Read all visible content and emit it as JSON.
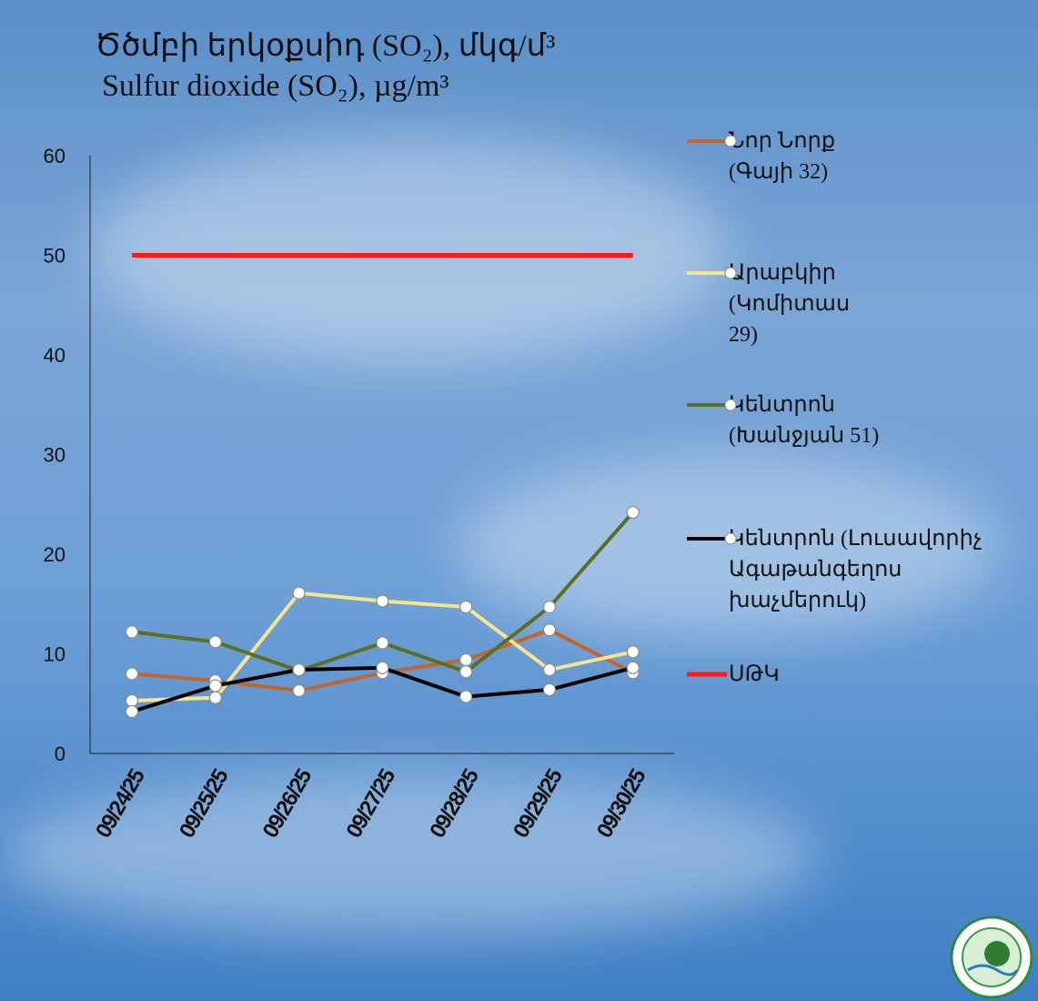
{
  "chart_data": {
    "type": "line",
    "title": "Ծծմբի երկօքսիդ (SO₂), մկգ/մ³",
    "subtitle": "Sulfur dioxide (SO₂), µg/m³",
    "categories": [
      "09/24/25",
      "09/25/25",
      "09/26/25",
      "09/27/25",
      "09/28/25",
      "09/29/25",
      "09/30/25"
    ],
    "series": [
      {
        "name": "Նոր Նորք (Գայի 32)",
        "color": "#c4652b",
        "markers": true,
        "values": [
          8.0,
          7.3,
          6.3,
          8.1,
          9.4,
          12.4,
          8.1
        ]
      },
      {
        "name": "Արաբկիր (Կոմիտաս 29)",
        "color": "#f7e58c",
        "markers": true,
        "values": [
          5.3,
          5.6,
          16.1,
          15.3,
          14.7,
          8.4,
          10.2
        ]
      },
      {
        "name": "Կենտրոն (Խանջյան 51)",
        "color": "#5b6f1f",
        "markers": true,
        "values": [
          12.2,
          11.2,
          8.3,
          11.1,
          8.2,
          14.7,
          24.2
        ]
      },
      {
        "name": "Կենտրոն (Լուսավորիչ Ագաթանգեղոս խաչմերուկ)",
        "color": "#000000",
        "markers": true,
        "values": [
          4.2,
          6.8,
          8.4,
          8.6,
          5.7,
          6.4,
          8.6
        ]
      },
      {
        "name": "ՍԹԿ",
        "color": "#ff1a1a",
        "markers": false,
        "values": [
          50,
          50,
          50,
          50,
          50,
          50,
          50
        ]
      }
    ],
    "ylim": [
      0,
      60
    ],
    "yticks": [
      0,
      10,
      20,
      30,
      40,
      50,
      60
    ],
    "grid": false
  }
}
